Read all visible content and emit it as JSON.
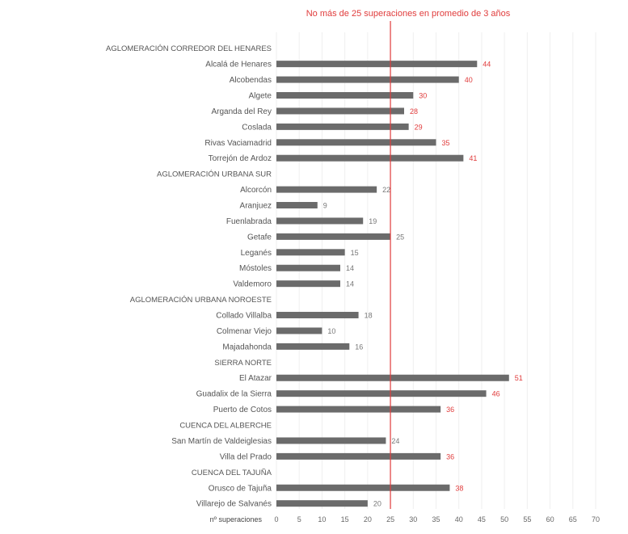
{
  "chart_data": {
    "type": "bar",
    "orientation": "horizontal",
    "title": "No más de 25 superaciones en promedio de 3 años",
    "xlabel": "nº superaciones",
    "ylabel": "",
    "xlim": [
      0,
      70
    ],
    "xticks": [
      "0",
      "5",
      "10",
      "15",
      "20",
      "25",
      "30",
      "35",
      "40",
      "45",
      "50",
      "55",
      "60",
      "65",
      "70"
    ],
    "reference_line": {
      "value": 25,
      "color": "#e03c3c"
    },
    "grid": true,
    "legend": "none",
    "bar_color": "#6b6b6b",
    "label_color_above_limit": "#e03c3c",
    "label_color_below_limit": "#777777",
    "rows": [
      {
        "kind": "group",
        "label": "AGLOMERACIÓN CORREDOR DEL HENARES"
      },
      {
        "kind": "bar",
        "label": "Alcalá de Henares",
        "value": 44
      },
      {
        "kind": "bar",
        "label": "Alcobendas",
        "value": 40
      },
      {
        "kind": "bar",
        "label": "Algete",
        "value": 30
      },
      {
        "kind": "bar",
        "label": "Arganda del Rey",
        "value": 28
      },
      {
        "kind": "bar",
        "label": "Coslada",
        "value": 29
      },
      {
        "kind": "bar",
        "label": "Rivas Vaciamadrid",
        "value": 35
      },
      {
        "kind": "bar",
        "label": "Torrejón de Ardoz",
        "value": 41
      },
      {
        "kind": "group",
        "label": "AGLOMERACIÓN URBANA SUR"
      },
      {
        "kind": "bar",
        "label": "Alcorcón",
        "value": 22
      },
      {
        "kind": "bar",
        "label": "Aranjuez",
        "value": 9
      },
      {
        "kind": "bar",
        "label": "Fuenlabrada",
        "value": 19
      },
      {
        "kind": "bar",
        "label": "Getafe",
        "value": 25
      },
      {
        "kind": "bar",
        "label": "Leganés",
        "value": 15
      },
      {
        "kind": "bar",
        "label": "Móstoles",
        "value": 14
      },
      {
        "kind": "bar",
        "label": "Valdemoro",
        "value": 14
      },
      {
        "kind": "group",
        "label": "AGLOMERACIÓN URBANA NOROESTE"
      },
      {
        "kind": "bar",
        "label": "Collado Villalba",
        "value": 18
      },
      {
        "kind": "bar",
        "label": "Colmenar Viejo",
        "value": 10
      },
      {
        "kind": "bar",
        "label": "Majadahonda",
        "value": 16
      },
      {
        "kind": "group",
        "label": "SIERRA NORTE"
      },
      {
        "kind": "bar",
        "label": "El Atazar",
        "value": 51
      },
      {
        "kind": "bar",
        "label": "Guadalix de la Sierra",
        "value": 46
      },
      {
        "kind": "bar",
        "label": "Puerto de Cotos",
        "value": 36
      },
      {
        "kind": "group",
        "label": "CUENCA DEL ALBERCHE"
      },
      {
        "kind": "bar",
        "label": "San Martín de Valdeiglesias",
        "value": 24
      },
      {
        "kind": "bar",
        "label": "Villa del Prado",
        "value": 36
      },
      {
        "kind": "group",
        "label": "CUENCA DEL TAJUÑA"
      },
      {
        "kind": "bar",
        "label": "Orusco de Tajuña",
        "value": 38
      },
      {
        "kind": "bar",
        "label": "Villarejo de Salvanés",
        "value": 20
      }
    ]
  }
}
